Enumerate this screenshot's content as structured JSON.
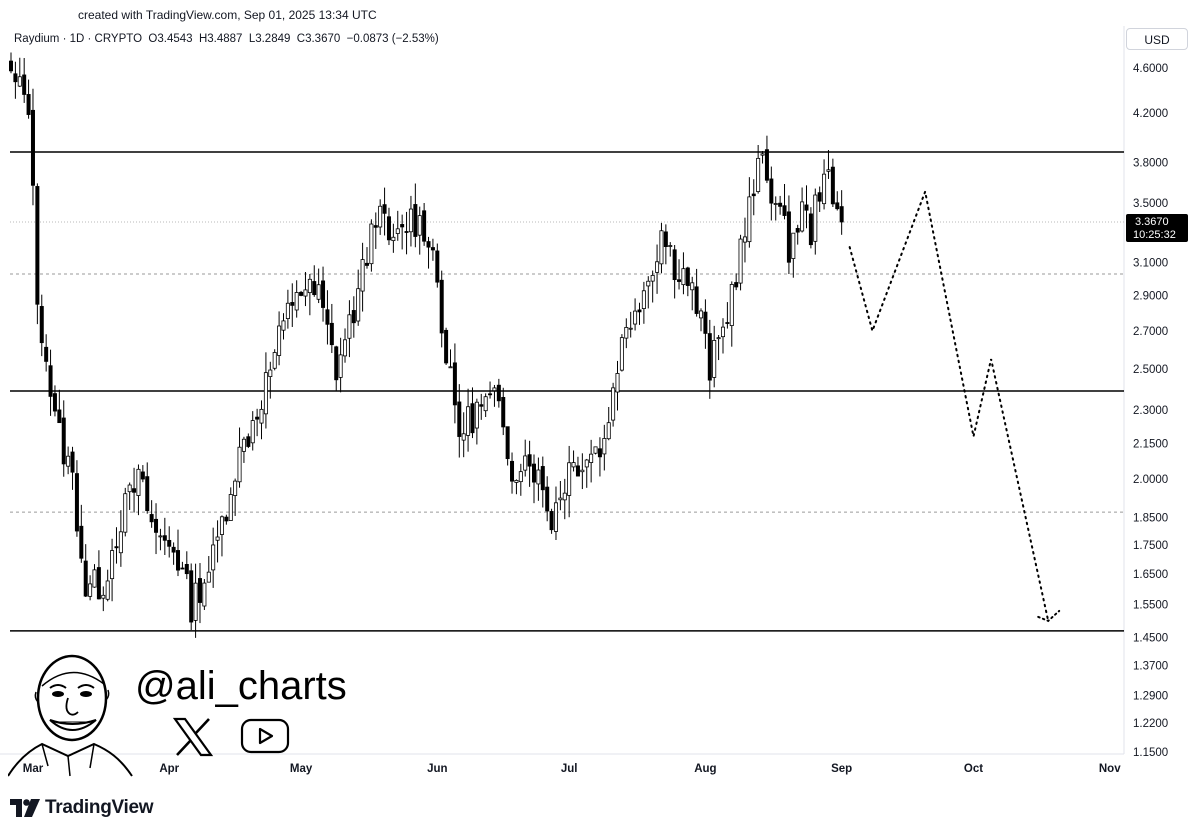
{
  "header": {
    "created_text": "created with TradingView.com, Sep 01, 2025 13:34 UTC"
  },
  "legend": {
    "symbol": "Raydium · 1D · CRYPTO",
    "open": "O3.4543",
    "high": "H3.4887",
    "low": "L3.2849",
    "close": "C3.3670",
    "change": "−0.0873 (−2.53%)"
  },
  "price_scale": {
    "currency": "USD",
    "ticks": [
      "4.6000",
      "4.2000",
      "3.8000",
      "3.5000",
      "3.1000",
      "2.9000",
      "2.7000",
      "2.5000",
      "2.3000",
      "2.1500",
      "2.0000",
      "1.8500",
      "1.7500",
      "1.6500",
      "1.5500",
      "1.4500",
      "1.3700",
      "1.2900",
      "1.2200",
      "1.1500"
    ],
    "last_price_label": "3.3670",
    "countdown_label": "10:25:32"
  },
  "brand": {
    "name": "TradingView"
  },
  "watermark": {
    "handle": "@ali_charts"
  },
  "colors": {
    "candle": "#000000",
    "support_resistance": "#000000",
    "dashed_level": "#9a9a9a"
  },
  "chart_data": {
    "type": "candlestick",
    "symbol": "Raydium",
    "interval": "1D",
    "currency": "USD",
    "y_scale": "log",
    "ylim": [
      1.15,
      4.6
    ],
    "x_ticks": [
      "Mar",
      "Apr",
      "May",
      "Jun",
      "Jul",
      "Aug",
      "Sep",
      "Oct",
      "Nov"
    ],
    "last_price": 3.367,
    "horizontal_levels": [
      {
        "price": 3.88,
        "style": "solid"
      },
      {
        "price": 3.03,
        "style": "dashed"
      },
      {
        "price": 2.39,
        "style": "solid"
      },
      {
        "price": 1.87,
        "style": "dashed"
      },
      {
        "price": 1.47,
        "style": "solid"
      }
    ],
    "price_anchors": [
      {
        "date": "Feb 25",
        "price": 4.45
      },
      {
        "date": "Feb 28",
        "price": 4.3
      },
      {
        "date": "Mar 02",
        "price": 2.9
      },
      {
        "date": "Mar 06",
        "price": 2.25
      },
      {
        "date": "Mar 10",
        "price": 2.0
      },
      {
        "date": "Mar 13",
        "price": 1.6
      },
      {
        "date": "Mar 17",
        "price": 1.62
      },
      {
        "date": "Mar 21",
        "price": 1.85
      },
      {
        "date": "Mar 25",
        "price": 2.0
      },
      {
        "date": "Mar 29",
        "price": 1.78
      },
      {
        "date": "Apr 02",
        "price": 1.75
      },
      {
        "date": "Apr 06",
        "price": 1.55
      },
      {
        "date": "Apr 11",
        "price": 1.7
      },
      {
        "date": "Apr 16",
        "price": 2.05
      },
      {
        "date": "Apr 21",
        "price": 2.3
      },
      {
        "date": "Apr 26",
        "price": 2.65
      },
      {
        "date": "Apr 30",
        "price": 2.95
      },
      {
        "date": "May 05",
        "price": 2.9
      },
      {
        "date": "May 09",
        "price": 2.5
      },
      {
        "date": "May 14",
        "price": 2.9
      },
      {
        "date": "May 18",
        "price": 3.45
      },
      {
        "date": "May 22",
        "price": 3.2
      },
      {
        "date": "May 26",
        "price": 3.4
      },
      {
        "date": "May 30",
        "price": 3.3
      },
      {
        "date": "Jun 01",
        "price": 3.0
      },
      {
        "date": "Jun 03",
        "price": 2.55
      },
      {
        "date": "Jun 06",
        "price": 2.2
      },
      {
        "date": "Jun 10",
        "price": 2.3
      },
      {
        "date": "Jun 14",
        "price": 2.35
      },
      {
        "date": "Jun 18",
        "price": 2.05
      },
      {
        "date": "Jun 22",
        "price": 2.1
      },
      {
        "date": "Jun 25",
        "price": 1.95
      },
      {
        "date": "Jun 27",
        "price": 1.85
      },
      {
        "date": "Jul 01",
        "price": 2.05
      },
      {
        "date": "Jul 05",
        "price": 2.1
      },
      {
        "date": "Jul 09",
        "price": 2.15
      },
      {
        "date": "Jul 12",
        "price": 2.55
      },
      {
        "date": "Jul 16",
        "price": 2.85
      },
      {
        "date": "Jul 19",
        "price": 3.0
      },
      {
        "date": "Jul 22",
        "price": 3.3
      },
      {
        "date": "Jul 25",
        "price": 3.1
      },
      {
        "date": "Jul 28",
        "price": 3.0
      },
      {
        "date": "Jul 31",
        "price": 2.75
      },
      {
        "date": "Aug 02",
        "price": 2.5
      },
      {
        "date": "Aug 05",
        "price": 2.7
      },
      {
        "date": "Aug 08",
        "price": 3.05
      },
      {
        "date": "Aug 11",
        "price": 3.45
      },
      {
        "date": "Aug 14",
        "price": 3.85
      },
      {
        "date": "Aug 17",
        "price": 3.5
      },
      {
        "date": "Aug 20",
        "price": 3.2
      },
      {
        "date": "Aug 23",
        "price": 3.45
      },
      {
        "date": "Aug 25",
        "price": 3.3
      },
      {
        "date": "Aug 28",
        "price": 3.8
      },
      {
        "date": "Aug 30",
        "price": 3.45
      },
      {
        "date": "Sep 01",
        "price": 3.367
      }
    ],
    "projection": [
      {
        "date": "Sep 01",
        "price": 3.2
      },
      {
        "date": "Sep 08",
        "price": 2.7
      },
      {
        "date": "Sep 20",
        "price": 3.58
      },
      {
        "date": "Oct 01",
        "price": 2.18
      },
      {
        "date": "Oct 05",
        "price": 2.55
      },
      {
        "date": "Oct 18",
        "price": 1.5
      }
    ]
  }
}
